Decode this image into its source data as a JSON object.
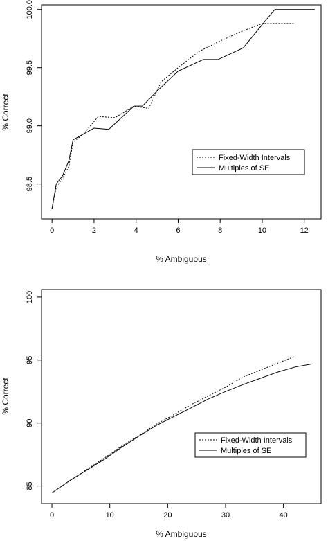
{
  "chart_data": [
    {
      "type": "line",
      "xlabel": "% Ambiguous",
      "ylabel": "% Correct",
      "xlim": [
        -0.5,
        12.8
      ],
      "ylim": [
        98.2,
        100.04
      ],
      "xticks": [
        "0",
        "2",
        "4",
        "6",
        "8",
        "10",
        "12"
      ],
      "xtick_values": [
        0,
        2,
        4,
        6,
        8,
        10,
        12
      ],
      "yticks": [
        "98.5",
        "99.0",
        "99.5",
        "100.0"
      ],
      "ytick_values": [
        98.5,
        99.0,
        99.5,
        100.0
      ],
      "legend_position": "bottom-right",
      "series": [
        {
          "name": "Fixed-Width Intervals",
          "style": "dotted",
          "x": [
            0,
            0.2,
            0.5,
            0.8,
            1.0,
            1.5,
            2.2,
            3.0,
            3.9,
            4.6,
            5.2,
            6.0,
            7.0,
            8.0,
            9.0,
            10.0,
            10.8,
            11.5
          ],
          "y": [
            98.29,
            98.47,
            98.55,
            98.65,
            98.86,
            98.93,
            99.08,
            99.07,
            99.17,
            99.15,
            99.38,
            99.5,
            99.64,
            99.73,
            99.81,
            99.88,
            99.88,
            99.88
          ]
        },
        {
          "name": "Multiples of SE",
          "style": "solid",
          "x": [
            0,
            0.2,
            0.5,
            0.8,
            1.0,
            1.5,
            2.0,
            2.7,
            3.9,
            4.3,
            5.0,
            6.0,
            7.2,
            7.9,
            9.1,
            10.0,
            10.6,
            12.5
          ],
          "y": [
            98.29,
            98.5,
            98.57,
            98.7,
            98.88,
            98.93,
            98.98,
            98.97,
            99.17,
            99.17,
            99.3,
            99.47,
            99.57,
            99.57,
            99.67,
            99.87,
            100.0,
            100.0
          ]
        }
      ]
    },
    {
      "type": "line",
      "xlabel": "% Ambiguous",
      "ylabel": "% Correct",
      "xlim": [
        -1.8,
        46.5
      ],
      "ylim": [
        83.6,
        100.6
      ],
      "xticks": [
        "0",
        "10",
        "20",
        "30",
        "40"
      ],
      "xtick_values": [
        0,
        10,
        20,
        30,
        40
      ],
      "yticks": [
        "85",
        "90",
        "95",
        "100"
      ],
      "ytick_values": [
        85,
        90,
        95,
        100
      ],
      "legend_position": "bottom-right",
      "series": [
        {
          "name": "Fixed-Width Intervals",
          "style": "dotted",
          "x": [
            0,
            3,
            6,
            9,
            12,
            15,
            18,
            21,
            24,
            27,
            30,
            33,
            36,
            39,
            42
          ],
          "y": [
            84.45,
            85.4,
            86.3,
            87.2,
            88.15,
            89.0,
            89.9,
            90.65,
            91.45,
            92.15,
            92.85,
            93.65,
            94.2,
            94.75,
            95.3
          ]
        },
        {
          "name": "Multiples of SE",
          "style": "solid",
          "x": [
            0,
            3,
            6,
            9,
            12,
            15,
            18,
            21,
            24,
            27,
            30,
            33,
            36,
            39,
            42,
            45
          ],
          "y": [
            84.45,
            85.4,
            86.25,
            87.1,
            88.05,
            88.95,
            89.8,
            90.5,
            91.2,
            91.9,
            92.5,
            93.05,
            93.55,
            94.05,
            94.45,
            94.7
          ]
        }
      ]
    }
  ]
}
